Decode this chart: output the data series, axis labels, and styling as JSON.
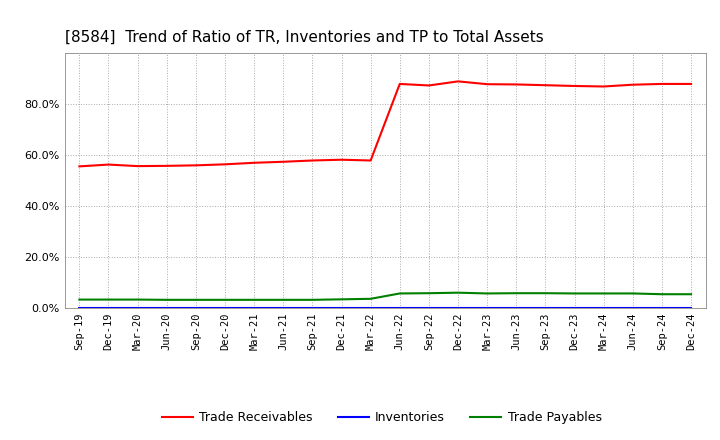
{
  "title": "[8584]  Trend of Ratio of TR, Inventories and TP to Total Assets",
  "x_labels": [
    "Sep-19",
    "Dec-19",
    "Mar-20",
    "Jun-20",
    "Sep-20",
    "Dec-20",
    "Mar-21",
    "Jun-21",
    "Sep-21",
    "Dec-21",
    "Mar-22",
    "Jun-22",
    "Sep-22",
    "Dec-22",
    "Mar-23",
    "Jun-23",
    "Sep-23",
    "Dec-23",
    "Mar-24",
    "Jun-24",
    "Sep-24",
    "Dec-24"
  ],
  "trade_receivables": [
    0.555,
    0.562,
    0.556,
    0.557,
    0.559,
    0.563,
    0.569,
    0.573,
    0.578,
    0.581,
    0.578,
    0.878,
    0.872,
    0.888,
    0.877,
    0.876,
    0.873,
    0.87,
    0.868,
    0.875,
    0.878,
    0.878
  ],
  "inventories": [
    0.0,
    0.0,
    0.0,
    0.0,
    0.0,
    0.0,
    0.0,
    0.0,
    0.0,
    0.0,
    0.0,
    0.0,
    0.0,
    0.0,
    0.0,
    0.0,
    0.0,
    0.0,
    0.0,
    0.0,
    0.0,
    0.0
  ],
  "trade_payables": [
    0.033,
    0.033,
    0.033,
    0.032,
    0.032,
    0.032,
    0.032,
    0.032,
    0.032,
    0.034,
    0.036,
    0.057,
    0.058,
    0.06,
    0.057,
    0.058,
    0.058,
    0.057,
    0.057,
    0.057,
    0.054,
    0.054
  ],
  "tr_color": "#ff0000",
  "inv_color": "#0000ff",
  "tp_color": "#008000",
  "ylim": [
    0.0,
    1.0
  ],
  "yticks": [
    0.0,
    0.2,
    0.4,
    0.6,
    0.8
  ],
  "background_color": "#ffffff",
  "grid_color": "#aaaaaa",
  "title_fontsize": 11,
  "legend_labels": [
    "Trade Receivables",
    "Inventories",
    "Trade Payables"
  ]
}
